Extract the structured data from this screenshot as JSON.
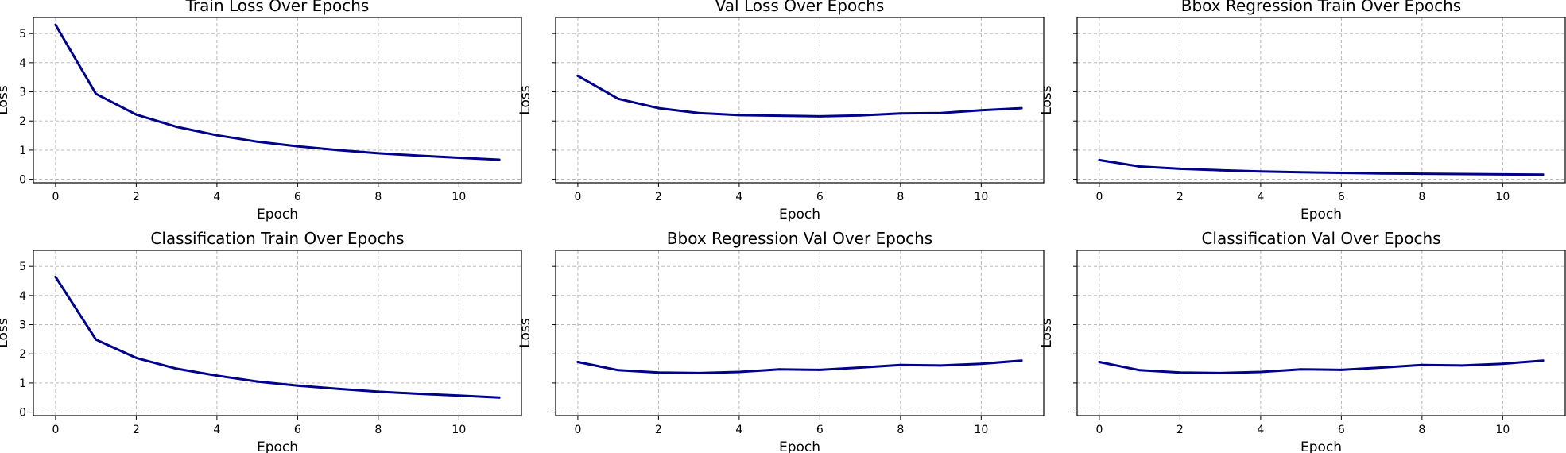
{
  "chart_data": [
    {
      "type": "line",
      "title": "Train Loss Over Epochs",
      "xlabel": "Epoch",
      "ylabel": "Loss",
      "xlim": [
        -0.55,
        11.55
      ],
      "ylim": [
        -0.12,
        5.55
      ],
      "xticks": [
        0,
        2,
        4,
        6,
        8,
        10
      ],
      "yticks": [
        0,
        1,
        2,
        3,
        4,
        5
      ],
      "show_yticklabels": true,
      "grid": true,
      "x": [
        0,
        1,
        2,
        3,
        4,
        5,
        6,
        7,
        8,
        9,
        10,
        11
      ],
      "series": [
        {
          "values": [
            5.3,
            2.93,
            2.22,
            1.8,
            1.51,
            1.29,
            1.13,
            1.0,
            0.89,
            0.81,
            0.74,
            0.67
          ],
          "color": "#00008b"
        }
      ]
    },
    {
      "type": "line",
      "title": "Val Loss Over Epochs",
      "xlabel": "Epoch",
      "ylabel": "Loss",
      "xlim": [
        -0.55,
        11.55
      ],
      "ylim": [
        -0.12,
        5.55
      ],
      "xticks": [
        0,
        2,
        4,
        6,
        8,
        10
      ],
      "yticks": [
        0,
        1,
        2,
        3,
        4,
        5
      ],
      "show_yticklabels": false,
      "grid": true,
      "x": [
        0,
        1,
        2,
        3,
        4,
        5,
        6,
        7,
        8,
        9,
        10,
        11
      ],
      "series": [
        {
          "values": [
            3.55,
            2.76,
            2.44,
            2.27,
            2.2,
            2.18,
            2.16,
            2.19,
            2.26,
            2.27,
            2.37,
            2.44
          ],
          "color": "#00008b"
        }
      ]
    },
    {
      "type": "line",
      "title": "Bbox Regression Train Over Epochs",
      "xlabel": "Epoch",
      "ylabel": "Loss",
      "xlim": [
        -0.55,
        11.55
      ],
      "ylim": [
        -0.12,
        5.55
      ],
      "xticks": [
        0,
        2,
        4,
        6,
        8,
        10
      ],
      "yticks": [
        0,
        1,
        2,
        3,
        4,
        5
      ],
      "show_yticklabels": false,
      "grid": true,
      "x": [
        0,
        1,
        2,
        3,
        4,
        5,
        6,
        7,
        8,
        9,
        10,
        11
      ],
      "series": [
        {
          "values": [
            0.66,
            0.44,
            0.36,
            0.31,
            0.27,
            0.24,
            0.22,
            0.2,
            0.19,
            0.18,
            0.17,
            0.16
          ],
          "color": "#00008b"
        }
      ]
    },
    {
      "type": "line",
      "title": "Classification Train Over Epochs",
      "xlabel": "Epoch",
      "ylabel": "Loss",
      "xlim": [
        -0.55,
        11.55
      ],
      "ylim": [
        -0.12,
        5.55
      ],
      "xticks": [
        0,
        2,
        4,
        6,
        8,
        10
      ],
      "yticks": [
        0,
        1,
        2,
        3,
        4,
        5
      ],
      "show_yticklabels": true,
      "grid": true,
      "x": [
        0,
        1,
        2,
        3,
        4,
        5,
        6,
        7,
        8,
        9,
        10,
        11
      ],
      "series": [
        {
          "values": [
            4.64,
            2.49,
            1.86,
            1.49,
            1.25,
            1.05,
            0.91,
            0.8,
            0.7,
            0.63,
            0.57,
            0.5
          ],
          "color": "#00008b"
        }
      ]
    },
    {
      "type": "line",
      "title": "Bbox Regression Val Over Epochs",
      "xlabel": "Epoch",
      "ylabel": "Loss",
      "xlim": [
        -0.55,
        11.55
      ],
      "ylim": [
        -0.12,
        5.55
      ],
      "xticks": [
        0,
        2,
        4,
        6,
        8,
        10
      ],
      "yticks": [
        0,
        1,
        2,
        3,
        4,
        5
      ],
      "show_yticklabels": false,
      "grid": true,
      "x": [
        0,
        1,
        2,
        3,
        4,
        5,
        6,
        7,
        8,
        9,
        10,
        11
      ],
      "series": [
        {
          "values": [
            1.72,
            1.44,
            1.36,
            1.34,
            1.38,
            1.47,
            1.45,
            1.53,
            1.62,
            1.6,
            1.66,
            1.77
          ],
          "color": "#00008b"
        }
      ]
    },
    {
      "type": "line",
      "title": "Classification Val Over Epochs",
      "xlabel": "Epoch",
      "ylabel": "Loss",
      "xlim": [
        -0.55,
        11.55
      ],
      "ylim": [
        -0.12,
        5.55
      ],
      "xticks": [
        0,
        2,
        4,
        6,
        8,
        10
      ],
      "yticks": [
        0,
        1,
        2,
        3,
        4,
        5
      ],
      "show_yticklabels": false,
      "grid": true,
      "x": [
        0,
        1,
        2,
        3,
        4,
        5,
        6,
        7,
        8,
        9,
        10,
        11
      ],
      "series": [
        {
          "values": [
            1.72,
            1.44,
            1.36,
            1.34,
            1.38,
            1.47,
            1.45,
            1.53,
            1.62,
            1.6,
            1.66,
            1.77
          ],
          "color": "#00008b"
        }
      ]
    }
  ]
}
